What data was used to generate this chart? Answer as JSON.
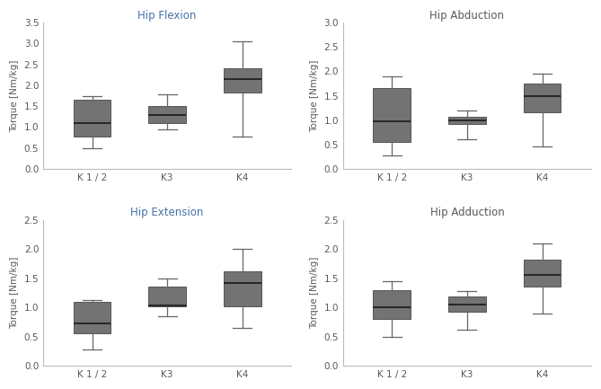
{
  "subplots": [
    {
      "title": "Hip Flexion",
      "title_color": "#4472a8",
      "ylabel": "Torque [Nm/kg]",
      "ylim": [
        0,
        3.5
      ],
      "yticks": [
        0.0,
        0.5,
        1.0,
        1.5,
        2.0,
        2.5,
        3.0,
        3.5
      ],
      "groups": [
        "K 1 / 2",
        "K3",
        "K4"
      ],
      "group_colors": [
        "#595959",
        "#595959",
        "#595959"
      ],
      "boxes": [
        {
          "whislo": 0.48,
          "q1": 0.78,
          "med": 1.1,
          "q3": 1.65,
          "whishi": 1.75
        },
        {
          "whislo": 0.95,
          "q1": 1.1,
          "med": 1.28,
          "q3": 1.5,
          "whishi": 1.78
        },
        {
          "whislo": 0.78,
          "q1": 1.82,
          "med": 2.15,
          "q3": 2.4,
          "whishi": 3.05
        }
      ]
    },
    {
      "title": "Hip Abduction",
      "title_color": "#595959",
      "ylabel": "Torque [Nm/kg]",
      "ylim": [
        0,
        3.0
      ],
      "yticks": [
        0.0,
        0.5,
        1.0,
        1.5,
        2.0,
        2.5,
        3.0
      ],
      "groups": [
        "K 1 / 2",
        "K3",
        "K4"
      ],
      "group_colors": [
        "#595959",
        "#595959",
        "#595959"
      ],
      "boxes": [
        {
          "whislo": 0.28,
          "q1": 0.55,
          "med": 0.97,
          "q3": 1.65,
          "whishi": 1.9
        },
        {
          "whislo": 0.6,
          "q1": 0.92,
          "med": 1.0,
          "q3": 1.07,
          "whishi": 1.2
        },
        {
          "whislo": 0.45,
          "q1": 1.15,
          "med": 1.5,
          "q3": 1.75,
          "whishi": 1.95
        }
      ]
    },
    {
      "title": "Hip Extension",
      "title_color": "#4472a8",
      "ylabel": "Torque [Nm/kg]",
      "ylim": [
        0,
        2.5
      ],
      "yticks": [
        0.0,
        0.5,
        1.0,
        1.5,
        2.0,
        2.5
      ],
      "groups": [
        "K 1 / 2",
        "K3",
        "K4"
      ],
      "group_colors": [
        "#595959",
        "#595959",
        "#1f6496"
      ],
      "boxes": [
        {
          "whislo": 0.27,
          "q1": 0.55,
          "med": 0.72,
          "q3": 1.1,
          "whishi": 1.12
        },
        {
          "whislo": 0.85,
          "q1": 1.02,
          "med": 1.03,
          "q3": 1.35,
          "whishi": 1.5
        },
        {
          "whislo": 0.65,
          "q1": 1.02,
          "med": 1.42,
          "q3": 1.62,
          "whishi": 2.0
        }
      ]
    },
    {
      "title": "Hip Adduction",
      "title_color": "#595959",
      "ylabel": "Torque [Nm/kg]",
      "ylim": [
        0,
        2.5
      ],
      "yticks": [
        0.0,
        0.5,
        1.0,
        1.5,
        2.0,
        2.5
      ],
      "groups": [
        "K 1 / 2",
        "K3",
        "K4"
      ],
      "group_colors": [
        "#595959",
        "#1f6496",
        "#595959"
      ],
      "boxes": [
        {
          "whislo": 0.5,
          "q1": 0.8,
          "med": 1.0,
          "q3": 1.3,
          "whishi": 1.45
        },
        {
          "whislo": 0.62,
          "q1": 0.92,
          "med": 1.05,
          "q3": 1.18,
          "whishi": 1.28
        },
        {
          "whislo": 0.9,
          "q1": 1.35,
          "med": 1.55,
          "q3": 1.82,
          "whishi": 2.1
        }
      ]
    }
  ],
  "box_facecolor": "#737373",
  "box_edgecolor": "#555555",
  "median_color": "#1a1a1a",
  "whisker_color": "#666666",
  "cap_color": "#666666",
  "box_width": 0.5,
  "background_color": "#ffffff",
  "tick_label_color": "#595959",
  "axis_label_color": "#595959",
  "tick_label_fontsize": 7.5,
  "axis_label_fontsize": 7.5,
  "title_fontsize": 8.5
}
